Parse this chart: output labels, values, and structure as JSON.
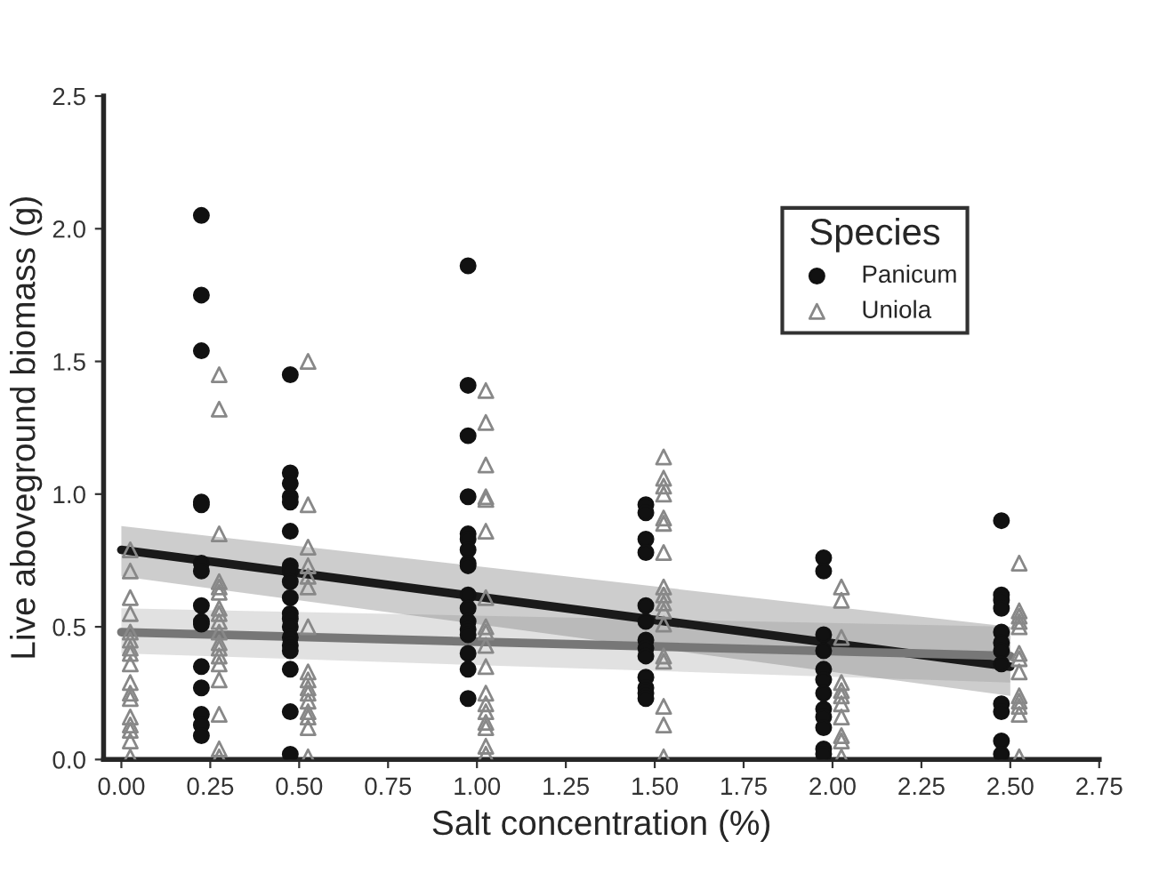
{
  "chart_data": {
    "type": "scatter",
    "xlabel": "Salt concentration (%)",
    "ylabel": "Live aboveground biomass (g)",
    "legend_title": "Species",
    "legend": "top right",
    "grid": false,
    "xlim": [
      -0.05,
      2.75
    ],
    "ylim": [
      0,
      2.5
    ],
    "xticks": [
      {
        "value": 0,
        "label": "0.00"
      },
      {
        "value": 0.25,
        "label": "0.25"
      },
      {
        "value": 0.5,
        "label": "0.50"
      },
      {
        "value": 0.75,
        "label": "0.75"
      },
      {
        "value": 1,
        "label": "1.00"
      },
      {
        "value": 1.25,
        "label": "1.25"
      },
      {
        "value": 1.5,
        "label": "1.50"
      },
      {
        "value": 1.75,
        "label": "1.75"
      },
      {
        "value": 2,
        "label": "2.00"
      },
      {
        "value": 2.25,
        "label": "2.25"
      },
      {
        "value": 2.5,
        "label": "2.50"
      },
      {
        "value": 2.75,
        "label": "2.75"
      }
    ],
    "yticks": [
      {
        "value": 0,
        "label": "0.0"
      },
      {
        "value": 0.5,
        "label": "0.5"
      },
      {
        "value": 1,
        "label": "1.0"
      },
      {
        "value": 1.5,
        "label": "1.5"
      },
      {
        "value": 2,
        "label": "2.0"
      },
      {
        "value": 2.5,
        "label": "2.5"
      }
    ],
    "series": [
      {
        "name": "Panicum",
        "marker": "circle",
        "color": "#111111",
        "x": [
          0.225,
          0.225,
          0.225,
          0.225,
          0.225,
          0.225,
          0.225,
          0.225,
          0.225,
          0.225,
          0.225,
          0.225,
          0.225,
          0.225,
          0.225,
          0.475,
          0.475,
          0.475,
          0.475,
          0.475,
          0.475,
          0.475,
          0.475,
          0.475,
          0.475,
          0.475,
          0.475,
          0.475,
          0.475,
          0.475,
          0.475,
          0.475,
          0.475,
          0.475,
          0.975,
          0.975,
          0.975,
          0.975,
          0.975,
          0.975,
          0.975,
          0.975,
          0.975,
          0.975,
          0.975,
          0.975,
          0.975,
          0.975,
          0.975,
          0.975,
          0.975,
          1.475,
          1.475,
          1.475,
          1.475,
          1.475,
          1.475,
          1.475,
          1.475,
          1.475,
          1.475,
          1.475,
          1.475,
          1.475,
          1.975,
          1.975,
          1.975,
          1.975,
          1.975,
          1.975,
          1.975,
          1.975,
          1.975,
          1.975,
          1.975,
          1.975,
          2.475,
          2.475,
          2.475,
          2.475,
          2.475,
          2.475,
          2.475,
          2.475,
          2.475,
          2.475,
          2.475,
          2.475
        ],
        "values": [
          2.05,
          1.75,
          1.54,
          0.97,
          0.96,
          0.74,
          0.71,
          0.58,
          0.52,
          0.51,
          0.35,
          0.27,
          0.17,
          0.13,
          0.09,
          1.45,
          1.08,
          1.04,
          0.99,
          0.97,
          0.86,
          0.73,
          0.71,
          0.67,
          0.61,
          0.55,
          0.53,
          0.5,
          0.46,
          0.43,
          0.41,
          0.34,
          0.18,
          0.02,
          1.86,
          1.41,
          1.22,
          0.99,
          0.85,
          0.83,
          0.79,
          0.74,
          0.73,
          0.62,
          0.57,
          0.52,
          0.49,
          0.47,
          0.4,
          0.34,
          0.23,
          0.96,
          0.93,
          0.83,
          0.78,
          0.58,
          0.52,
          0.45,
          0.42,
          0.39,
          0.31,
          0.27,
          0.25,
          0.23,
          0.76,
          0.71,
          0.47,
          0.41,
          0.34,
          0.3,
          0.25,
          0.19,
          0.16,
          0.12,
          0.04,
          0.02,
          0.9,
          0.62,
          0.6,
          0.57,
          0.48,
          0.44,
          0.41,
          0.36,
          0.21,
          0.18,
          0.07,
          0.02
        ]
      },
      {
        "name": "Uniola",
        "marker": "triangle",
        "color": "#888888",
        "x": [
          0.025,
          0.025,
          0.025,
          0.025,
          0.025,
          0.025,
          0.025,
          0.025,
          0.025,
          0.025,
          0.025,
          0.025,
          0.025,
          0.025,
          0.025,
          0.025,
          0.025,
          0.275,
          0.275,
          0.275,
          0.275,
          0.275,
          0.275,
          0.275,
          0.275,
          0.275,
          0.275,
          0.275,
          0.275,
          0.275,
          0.275,
          0.275,
          0.275,
          0.275,
          0.275,
          0.525,
          0.525,
          0.525,
          0.525,
          0.525,
          0.525,
          0.525,
          0.525,
          0.525,
          0.525,
          0.525,
          0.525,
          0.525,
          0.525,
          0.525,
          0.525,
          1.025,
          1.025,
          1.025,
          1.025,
          1.025,
          1.025,
          1.025,
          1.025,
          1.025,
          1.025,
          1.025,
          1.025,
          1.025,
          1.025,
          1.025,
          1.025,
          1.025,
          1.025,
          1.525,
          1.525,
          1.525,
          1.525,
          1.525,
          1.525,
          1.525,
          1.525,
          1.525,
          1.525,
          1.525,
          1.525,
          1.525,
          1.525,
          1.525,
          1.525,
          1.525,
          2.025,
          2.025,
          2.025,
          2.025,
          2.025,
          2.025,
          2.025,
          2.025,
          2.025,
          2.025,
          2.025,
          2.525,
          2.525,
          2.525,
          2.525,
          2.525,
          2.525,
          2.525,
          2.525,
          2.525,
          2.525,
          2.525,
          2.525,
          2.525
        ],
        "values": [
          0.79,
          0.71,
          0.61,
          0.55,
          0.48,
          0.45,
          0.42,
          0.4,
          0.36,
          0.29,
          0.25,
          0.23,
          0.16,
          0.13,
          0.11,
          0.07,
          0.01,
          1.45,
          1.32,
          0.85,
          0.67,
          0.65,
          0.63,
          0.57,
          0.55,
          0.52,
          0.48,
          0.44,
          0.42,
          0.39,
          0.36,
          0.3,
          0.17,
          0.04,
          0.01,
          1.5,
          0.96,
          0.8,
          0.73,
          0.69,
          0.65,
          0.5,
          0.33,
          0.3,
          0.27,
          0.25,
          0.22,
          0.18,
          0.16,
          0.12,
          0.01,
          1.39,
          1.27,
          1.11,
          0.99,
          0.98,
          0.86,
          0.61,
          0.5,
          0.48,
          0.43,
          0.35,
          0.25,
          0.21,
          0.18,
          0.14,
          0.12,
          0.05,
          0.02,
          1.14,
          1.06,
          1.03,
          1.0,
          0.91,
          0.89,
          0.78,
          0.65,
          0.62,
          0.59,
          0.56,
          0.51,
          0.39,
          0.37,
          0.2,
          0.13,
          0.01,
          0.65,
          0.6,
          0.46,
          0.29,
          0.26,
          0.24,
          0.21,
          0.16,
          0.09,
          0.07,
          0.01,
          0.74,
          0.56,
          0.54,
          0.52,
          0.5,
          0.4,
          0.38,
          0.33,
          0.24,
          0.22,
          0.2,
          0.17,
          0.01
        ]
      },
      {
        "type": "line",
        "color": "#1a1a1a",
        "x": [
          0,
          2.5
        ],
        "values": [
          0.79,
          0.35
        ],
        "lower": [
          0.69,
          0.24
        ],
        "upper": [
          0.88,
          0.5
        ]
      },
      {
        "type": "line",
        "color": "#777777",
        "x": [
          0,
          2.5
        ],
        "values": [
          0.48,
          0.39
        ],
        "lower": [
          0.4,
          0.29
        ],
        "upper": [
          0.57,
          0.5
        ]
      }
    ]
  }
}
